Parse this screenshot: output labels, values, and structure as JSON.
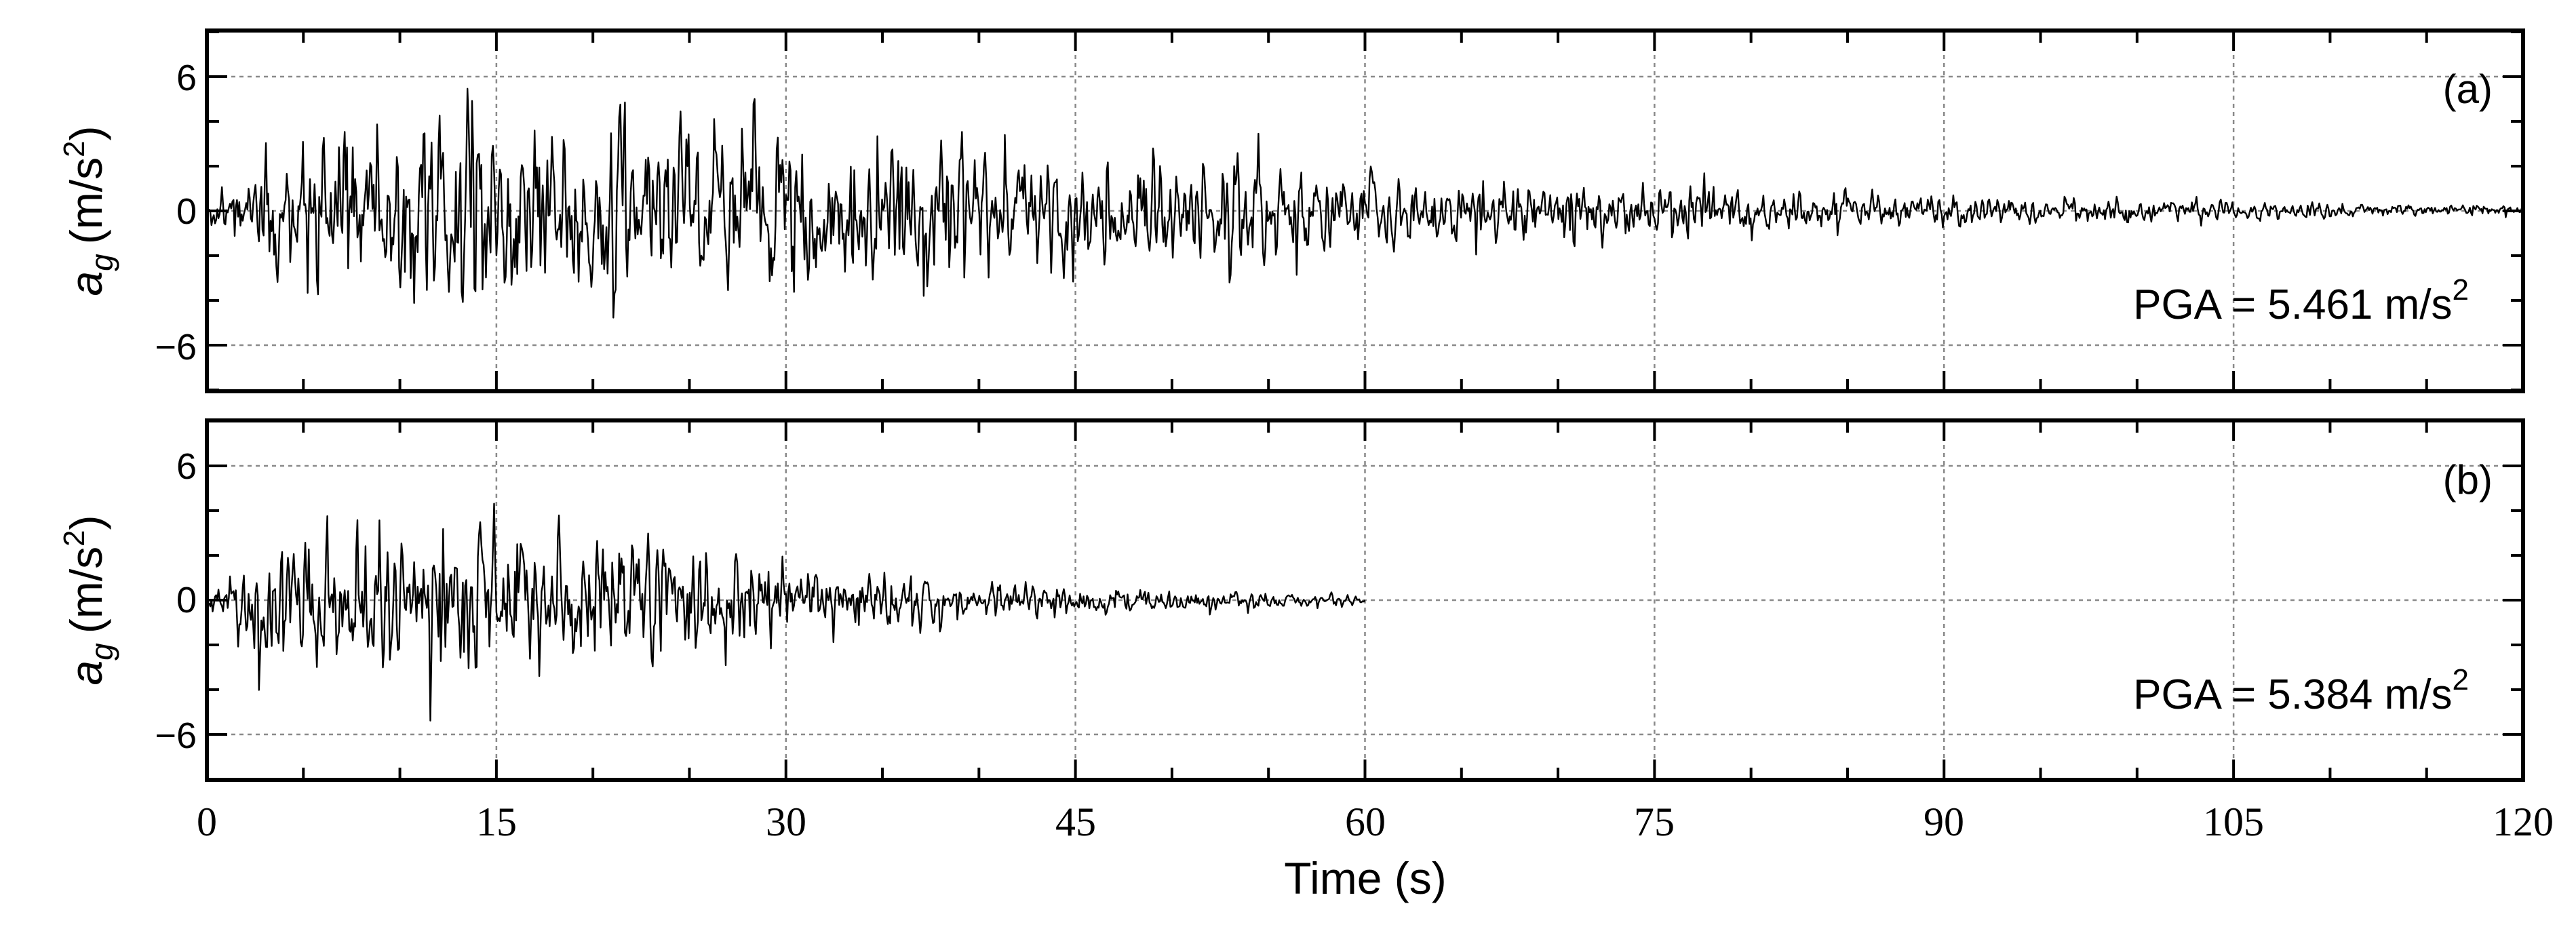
{
  "chart_data": [
    {
      "type": "line",
      "panel_label": "(a)",
      "ylabel": {
        "symbol": "a",
        "subscript": "g",
        "unit": "(m/s",
        "unit_exp": "2",
        "unit_close": ")"
      },
      "annotation": {
        "text": "PGA = 5.461 m/s",
        "exp": "2"
      },
      "pga": 5.461,
      "duration": 120,
      "envelope": [
        [
          0,
          0.3
        ],
        [
          2,
          1.8
        ],
        [
          5,
          3.2
        ],
        [
          10,
          3.9
        ],
        [
          15,
          4.0
        ],
        [
          25,
          3.6
        ],
        [
          35,
          3.3
        ],
        [
          45,
          2.6
        ],
        [
          55,
          2.0
        ],
        [
          65,
          1.4
        ],
        [
          75,
          1.05
        ],
        [
          85,
          0.75
        ],
        [
          95,
          0.55
        ],
        [
          105,
          0.38
        ],
        [
          120,
          0.22
        ]
      ],
      "xlim": [
        0,
        120
      ],
      "ylim": [
        -9,
        9
      ],
      "xticks": [
        0,
        15,
        30,
        45,
        60,
        75,
        90,
        105,
        120
      ],
      "yticks": [
        6,
        0,
        -6
      ],
      "ytick_labels": [
        "6",
        "0",
        "−6"
      ],
      "grid": true
    },
    {
      "type": "line",
      "panel_label": "(b)",
      "ylabel": {
        "symbol": "a",
        "subscript": "g",
        "unit": "(m/s",
        "unit_exp": "2",
        "unit_close": ")"
      },
      "annotation": {
        "text": "PGA = 5.384 m/s",
        "exp": "2"
      },
      "pga": 5.384,
      "duration": 60,
      "envelope": [
        [
          0,
          0.3
        ],
        [
          1,
          1.6
        ],
        [
          3,
          3.4
        ],
        [
          7,
          3.9
        ],
        [
          12,
          3.8
        ],
        [
          18,
          3.5
        ],
        [
          25,
          2.8
        ],
        [
          30,
          2.0
        ],
        [
          37,
          1.3
        ],
        [
          45,
          0.8
        ],
        [
          52,
          0.5
        ],
        [
          60,
          0.25
        ]
      ],
      "xlim": [
        0,
        120
      ],
      "ylim": [
        -9,
        9
      ],
      "xticks": [
        0,
        15,
        30,
        45,
        60,
        75,
        90,
        105,
        120
      ],
      "yticks": [
        6,
        0,
        -6
      ],
      "ytick_labels": [
        "6",
        "0",
        "−6"
      ],
      "grid": true
    }
  ],
  "xaxis": {
    "label": "Time (s)",
    "tick_labels": [
      "0",
      "15",
      "30",
      "45",
      "60",
      "75",
      "90",
      "105",
      "120"
    ]
  }
}
